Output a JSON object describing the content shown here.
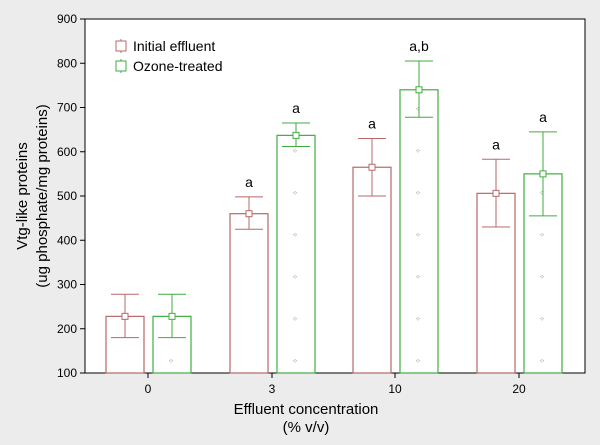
{
  "chart_data": {
    "type": "bar",
    "xlabel": "Effluent concentration",
    "xlabel_unit": "(% v/v)",
    "ylabel": "Vtg-like proteins",
    "ylabel_unit": "(ug phosphate/mg proteins)",
    "ylim": [
      100,
      900
    ],
    "yticks": [
      100,
      200,
      300,
      400,
      500,
      600,
      700,
      800,
      900
    ],
    "categories": [
      "0",
      "3",
      "10",
      "20"
    ],
    "legend_position": "top-left",
    "grid": false,
    "series": [
      {
        "name": "Initial effluent",
        "color": "#b86868",
        "values": [
          228,
          460,
          565,
          506
        ],
        "error_low": [
          180,
          425,
          500,
          430
        ],
        "error_high": [
          278,
          498,
          630,
          583
        ],
        "labels": [
          "",
          "a",
          "a",
          "a"
        ]
      },
      {
        "name": "Ozone-treated",
        "color": "#3fae3f",
        "values": [
          228,
          637,
          740,
          550
        ],
        "error_low": [
          180,
          612,
          678,
          455
        ],
        "error_high": [
          278,
          665,
          805,
          645
        ],
        "labels": [
          "",
          "a",
          "a,b",
          "a"
        ]
      }
    ]
  }
}
